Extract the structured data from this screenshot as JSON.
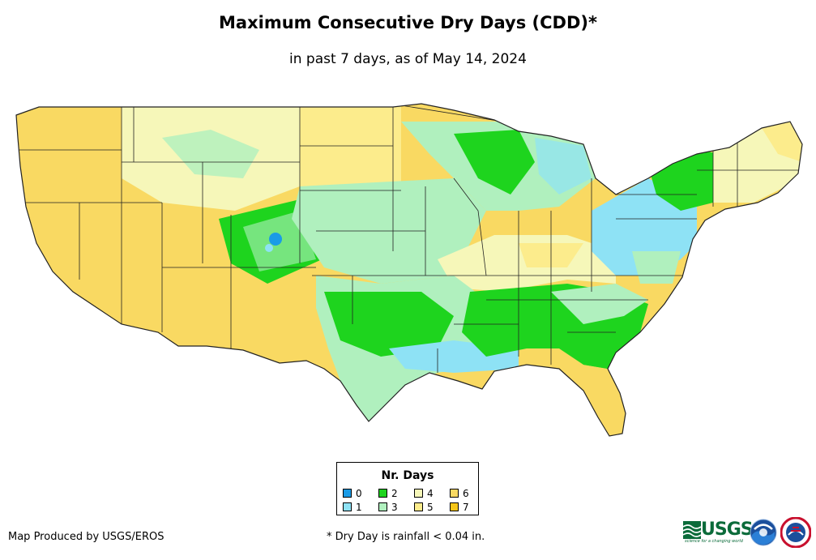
{
  "title": "Maximum Consecutive Dry Days (CDD)*",
  "subtitle": "in past 7 days, as of May 14, 2024",
  "legend": {
    "title": "Nr. Days",
    "items": [
      {
        "label": "0",
        "color": "#1a9be6"
      },
      {
        "label": "1",
        "color": "#8ee2f5"
      },
      {
        "label": "2",
        "color": "#1ed41e"
      },
      {
        "label": "3",
        "color": "#b0f0be"
      },
      {
        "label": "4",
        "color": "#f6f7b9"
      },
      {
        "label": "5",
        "color": "#fcec8c"
      },
      {
        "label": "6",
        "color": "#f9d962"
      },
      {
        "label": "7",
        "color": "#f5c518"
      }
    ]
  },
  "credit": "Map Produced by USGS/EROS",
  "footnote": "* Dry Day is rainfall < 0.04 in.",
  "logos": {
    "usgs": "USGS",
    "usgs_tagline": "science for a changing world"
  }
}
